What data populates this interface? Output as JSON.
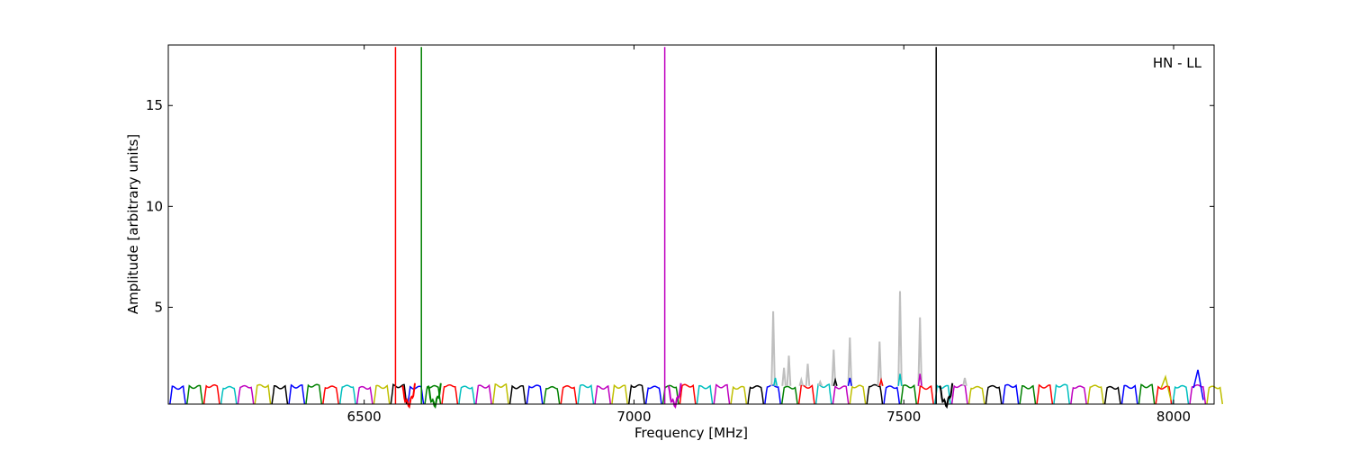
{
  "chart_data": {
    "type": "line",
    "title": "",
    "annotation": "HN - LL",
    "xlabel": "Frequency [MHz]",
    "ylabel": "Amplitude [arbitrary units]",
    "xlim": [
      6137,
      8075
    ],
    "ylim": [
      0.2,
      18
    ],
    "xticks": [
      6500,
      7000,
      7500,
      8000
    ],
    "yticks": [
      5,
      10,
      15
    ],
    "grid": false,
    "legend": "none",
    "band_colors": [
      "#0000ff",
      "#008000",
      "#ff0000",
      "#00bfbf",
      "#bf00bf",
      "#bfbf00",
      "#000000"
    ],
    "band_start": 6140,
    "band_spacing": 31.5,
    "band_count": 62,
    "band_peak": 1.1,
    "spikes": [
      {
        "x": 6558,
        "y": 17.9,
        "color": "#ff0000"
      },
      {
        "x": 6606,
        "y": 17.9,
        "color": "#008000"
      },
      {
        "x": 7057,
        "y": 17.9,
        "color": "#bf00bf"
      },
      {
        "x": 7560,
        "y": 17.9,
        "color": "#000000"
      }
    ],
    "gray_spikes": [
      {
        "x": 7258,
        "y": 4.8
      },
      {
        "x": 7278,
        "y": 2.0
      },
      {
        "x": 7287,
        "y": 2.6
      },
      {
        "x": 7310,
        "y": 1.4
      },
      {
        "x": 7322,
        "y": 2.2
      },
      {
        "x": 7345,
        "y": 1.3
      },
      {
        "x": 7370,
        "y": 2.9
      },
      {
        "x": 7400,
        "y": 3.5
      },
      {
        "x": 7455,
        "y": 3.3
      },
      {
        "x": 7493,
        "y": 5.8
      },
      {
        "x": 7530,
        "y": 4.5
      },
      {
        "x": 7613,
        "y": 1.5
      }
    ],
    "colored_bumps": [
      {
        "x": 7262,
        "y": 1.5,
        "color": "#00bfbf"
      },
      {
        "x": 7373,
        "y": 1.4,
        "color": "#000000"
      },
      {
        "x": 7400,
        "y": 1.5,
        "color": "#0000ff"
      },
      {
        "x": 7458,
        "y": 1.4,
        "color": "#ff0000"
      },
      {
        "x": 7493,
        "y": 1.7,
        "color": "#00bfbf"
      },
      {
        "x": 7530,
        "y": 1.7,
        "color": "#bf00bf"
      }
    ],
    "dips": [
      {
        "x": 6582,
        "color": "#ff0000"
      },
      {
        "x": 6630,
        "color": "#008000"
      },
      {
        "x": 7075,
        "color": "#bf00bf"
      },
      {
        "x": 7578,
        "color": "#000000"
      }
    ],
    "end_bumps": [
      {
        "x": 7985,
        "y": 1.55,
        "color": "#bfbf00"
      },
      {
        "x": 8045,
        "y": 1.9,
        "color": "#0000ff"
      }
    ]
  }
}
